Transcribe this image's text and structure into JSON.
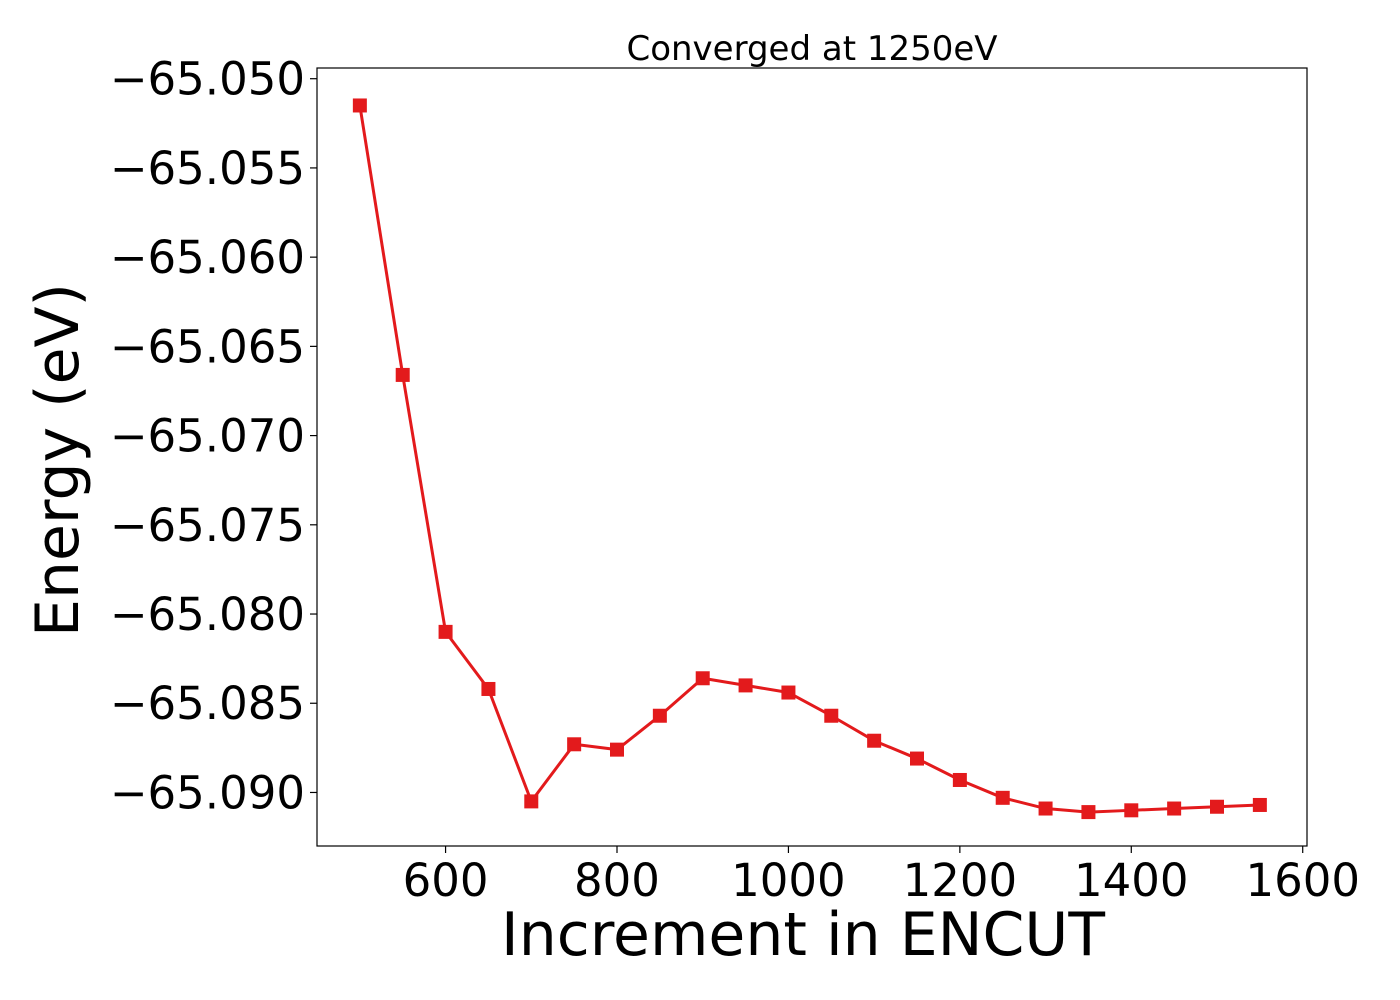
{
  "chart_data": {
    "type": "line",
    "title": "Converged at 1250eV",
    "xlabel": "Increment in ENCUT",
    "ylabel": "Energy (eV)",
    "xlim": [
      450,
      1605
    ],
    "ylim": [
      -65.093,
      -65.0494
    ],
    "xticks": [
      600,
      800,
      1000,
      1200,
      1400,
      1600
    ],
    "xtick_labels": [
      "600",
      "800",
      "1000",
      "1200",
      "1400",
      "1600"
    ],
    "yticks": [
      -65.05,
      -65.055,
      -65.06,
      -65.065,
      -65.07,
      -65.075,
      -65.08,
      -65.085,
      -65.09
    ],
    "ytick_labels": [
      "−65.050",
      "−65.055",
      "−65.060",
      "−65.065",
      "−65.070",
      "−65.075",
      "−65.080",
      "−65.085",
      "−65.090"
    ],
    "grid": false,
    "legend": "none",
    "series": [
      {
        "color": "#e31a1c",
        "marker": "square",
        "x": [
          500,
          550,
          600,
          650,
          700,
          750,
          800,
          850,
          900,
          950,
          1000,
          1050,
          1100,
          1150,
          1200,
          1250,
          1300,
          1350,
          1400,
          1450,
          1500,
          1550
        ],
        "y": [
          -65.0515,
          -65.0666,
          -65.081,
          -65.0842,
          -65.0905,
          -65.0873,
          -65.0876,
          -65.0857,
          -65.0836,
          -65.084,
          -65.0844,
          -65.0857,
          -65.0871,
          -65.0881,
          -65.0893,
          -65.0903,
          -65.0909,
          -65.0911,
          -65.091,
          -65.0909,
          -65.0908,
          -65.0907
        ]
      }
    ]
  }
}
